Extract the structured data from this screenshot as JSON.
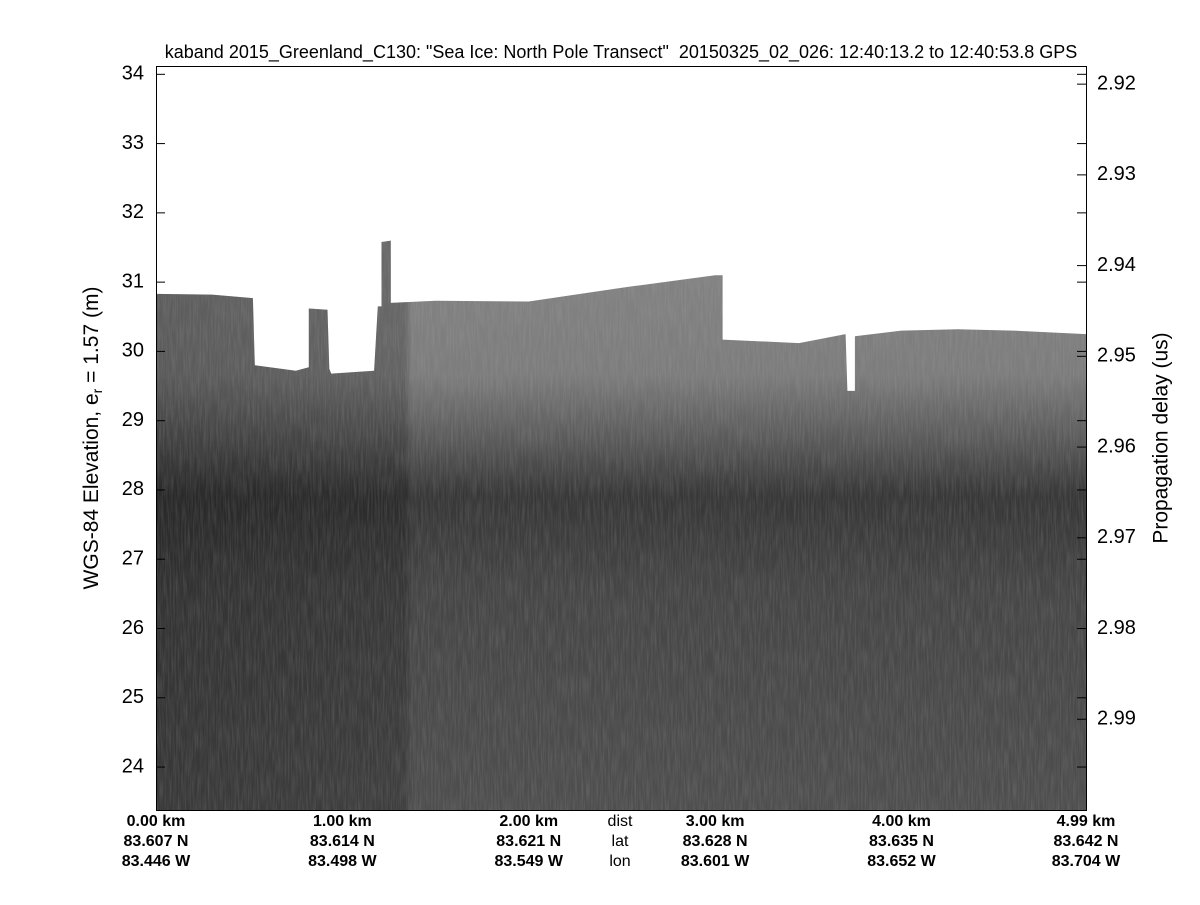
{
  "chart_data": {
    "type": "echogram",
    "title": "kaband 2015_Greenland_C130: \"Sea Ice: North Pole Transect\"  20150325_02_026: 12:40:13.2 to 12:40:53.8 GPS",
    "ylabel": [
      "WGS-84 Elevation, e",
      "r",
      " = 1.57 (m)"
    ],
    "y2label": "Propagation delay (us)",
    "ylim": [
      23.38,
      34.12
    ],
    "yticks": [
      24,
      25,
      26,
      27,
      28,
      29,
      30,
      31,
      32,
      33,
      34
    ],
    "y2lim": [
      3.0,
      2.918
    ],
    "y2ticks": [
      2.92,
      2.93,
      2.94,
      2.95,
      2.96,
      2.97,
      2.98,
      2.99
    ],
    "xlim": [
      0,
      4.99
    ],
    "xticks": [
      {
        "value": 0,
        "label": "0.00 km"
      },
      {
        "value": 1,
        "label": "1.00 km"
      },
      {
        "value": 2,
        "label": "2.00 km"
      },
      {
        "value": 3,
        "label": "3.00 km"
      },
      {
        "value": 4,
        "label": "4.00 km"
      },
      {
        "value": 4.99,
        "label": "4.99 km"
      }
    ],
    "lat_labels": [
      "83.607 N",
      "83.614 N",
      "83.621 N",
      "83.628 N",
      "83.635 N",
      "83.642 N"
    ],
    "lon_labels": [
      "83.446 W",
      "83.498 W",
      "83.549 W",
      "83.601 W",
      "83.652 W",
      "83.704 W"
    ],
    "row_labels": [
      "dist",
      "lat",
      "lon"
    ],
    "x": [
      0,
      0.3,
      0.52,
      0.53,
      0.75,
      0.82,
      0.82,
      0.92,
      0.93,
      0.94,
      1.17,
      1.19,
      1.21,
      1.21,
      1.26,
      1.26,
      1.5,
      2.0,
      2.5,
      3.0,
      3.04,
      3.04,
      3.45,
      3.7,
      3.71,
      3.75,
      3.75,
      4.0,
      4.3,
      4.6,
      4.99
    ],
    "values": [
      30.83,
      30.82,
      30.77,
      29.8,
      29.72,
      29.77,
      30.62,
      30.6,
      29.75,
      29.68,
      29.72,
      30.65,
      30.65,
      31.58,
      31.6,
      30.7,
      30.73,
      30.72,
      30.92,
      31.1,
      31.1,
      30.17,
      30.12,
      30.25,
      29.43,
      29.43,
      30.22,
      30.3,
      30.32,
      30.3,
      30.25
    ]
  }
}
